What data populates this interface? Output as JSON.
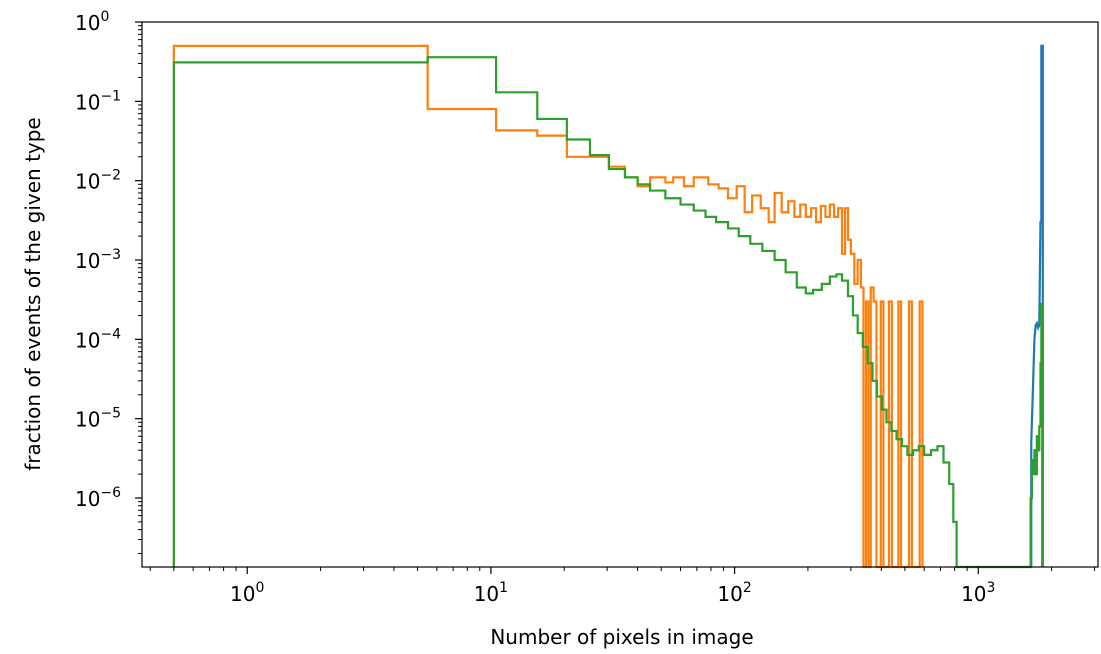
{
  "chart_data": {
    "type": "line",
    "subtype": "step-histogram",
    "title": "",
    "xlabel": "Number of pixels in image",
    "ylabel": "fraction of events of the given type",
    "xscale": "log",
    "yscale": "log",
    "xlim": [
      0.37,
      3100
    ],
    "ylim": [
      1.35e-07,
      1
    ],
    "grid": false,
    "legend": "none",
    "x_ticks": [
      {
        "value": 1,
        "base": "10",
        "exp": "0"
      },
      {
        "value": 10,
        "base": "10",
        "exp": "1"
      },
      {
        "value": 100,
        "base": "10",
        "exp": "2"
      },
      {
        "value": 1000,
        "base": "10",
        "exp": "3"
      }
    ],
    "y_ticks": [
      {
        "value": 1,
        "base": "10",
        "exp": "0"
      },
      {
        "value": 0.1,
        "base": "10",
        "exp": "−1"
      },
      {
        "value": 0.01,
        "base": "10",
        "exp": "−2"
      },
      {
        "value": 0.001,
        "base": "10",
        "exp": "−3"
      },
      {
        "value": 0.0001,
        "base": "10",
        "exp": "−4"
      },
      {
        "value": 1e-05,
        "base": "10",
        "exp": "−5"
      },
      {
        "value": 1e-06,
        "base": "10",
        "exp": "−6"
      }
    ],
    "series": [
      {
        "color": "#1f77b4",
        "points": [
          [
            1650,
            1.35e-07
          ],
          [
            1650,
            5e-06
          ],
          [
            1680,
            3e-05
          ],
          [
            1700,
            0.0001
          ],
          [
            1720,
            0.00015
          ],
          [
            1740,
            0.00016
          ],
          [
            1760,
            0.00014
          ],
          [
            1780,
            0.00015
          ],
          [
            1800,
            0.003
          ],
          [
            1815,
            0.003
          ],
          [
            1815,
            0.5
          ],
          [
            1840,
            0.5
          ],
          [
            1840,
            1.35e-07
          ]
        ]
      },
      {
        "color": "#ff7f0e",
        "points": [
          [
            0.5,
            1.35e-07
          ],
          [
            0.5,
            0.5
          ],
          [
            5.5,
            0.5
          ],
          [
            5.5,
            0.08
          ],
          [
            10.5,
            0.08
          ],
          [
            10.5,
            0.043
          ],
          [
            15.5,
            0.043
          ],
          [
            15.5,
            0.037
          ],
          [
            20.5,
            0.037
          ],
          [
            20.5,
            0.02
          ],
          [
            25.5,
            0.02
          ],
          [
            25.5,
            0.02
          ],
          [
            30.5,
            0.02
          ],
          [
            30.5,
            0.015
          ],
          [
            35.5,
            0.015
          ],
          [
            35.5,
            0.011
          ],
          [
            40,
            0.011
          ],
          [
            40,
            0.0085
          ],
          [
            45,
            0.0085
          ],
          [
            45,
            0.011
          ],
          [
            52,
            0.011
          ],
          [
            52,
            0.0095
          ],
          [
            56,
            0.0095
          ],
          [
            56,
            0.011
          ],
          [
            62,
            0.011
          ],
          [
            62,
            0.0085
          ],
          [
            68,
            0.0085
          ],
          [
            68,
            0.011
          ],
          [
            78,
            0.011
          ],
          [
            78,
            0.009
          ],
          [
            86,
            0.009
          ],
          [
            86,
            0.008
          ],
          [
            94,
            0.008
          ],
          [
            94,
            0.006
          ],
          [
            102,
            0.006
          ],
          [
            102,
            0.0085
          ],
          [
            110,
            0.0085
          ],
          [
            110,
            0.004
          ],
          [
            118,
            0.004
          ],
          [
            118,
            0.0065
          ],
          [
            128,
            0.0065
          ],
          [
            128,
            0.0045
          ],
          [
            138,
            0.0045
          ],
          [
            138,
            0.003
          ],
          [
            146,
            0.003
          ],
          [
            146,
            0.007
          ],
          [
            156,
            0.007
          ],
          [
            156,
            0.004
          ],
          [
            166,
            0.004
          ],
          [
            166,
            0.0055
          ],
          [
            176,
            0.0055
          ],
          [
            176,
            0.0035
          ],
          [
            186,
            0.0035
          ],
          [
            186,
            0.005
          ],
          [
            196,
            0.005
          ],
          [
            196,
            0.0035
          ],
          [
            206,
            0.0035
          ],
          [
            206,
            0.0045
          ],
          [
            216,
            0.0045
          ],
          [
            216,
            0.003
          ],
          [
            226,
            0.003
          ],
          [
            226,
            0.0048
          ],
          [
            236,
            0.0048
          ],
          [
            236,
            0.0035
          ],
          [
            246,
            0.0035
          ],
          [
            246,
            0.005
          ],
          [
            256,
            0.005
          ],
          [
            256,
            0.0035
          ],
          [
            266,
            0.0035
          ],
          [
            266,
            0.0045
          ],
          [
            276,
            0.0045
          ],
          [
            276,
            0.0012
          ],
          [
            284,
            0.0012
          ],
          [
            284,
            0.0045
          ],
          [
            292,
            0.0045
          ],
          [
            292,
            0.0018
          ],
          [
            300,
            0.0018
          ],
          [
            300,
            0.0012
          ],
          [
            310,
            0.0012
          ],
          [
            310,
            0.0005
          ],
          [
            320,
            0.0005
          ],
          [
            320,
            0.001
          ],
          [
            330,
            0.001
          ],
          [
            330,
            0.00045
          ],
          [
            338,
            0.00045
          ],
          [
            338,
            1.35e-07
          ],
          [
            346,
            1.35e-07
          ],
          [
            346,
            0.0003
          ],
          [
            354,
            0.0003
          ],
          [
            354,
            1.35e-07
          ],
          [
            362,
            1.35e-07
          ],
          [
            362,
            0.00045
          ],
          [
            372,
            0.00045
          ],
          [
            372,
            0.0003
          ],
          [
            382,
            0.0003
          ],
          [
            382,
            1.35e-07
          ],
          [
            398,
            1.35e-07
          ],
          [
            398,
            0.0003
          ],
          [
            408,
            0.0003
          ],
          [
            408,
            1.35e-07
          ],
          [
            430,
            1.35e-07
          ],
          [
            430,
            0.0003
          ],
          [
            442,
            0.0003
          ],
          [
            442,
            1.35e-07
          ],
          [
            470,
            1.35e-07
          ],
          [
            470,
            0.0003
          ],
          [
            482,
            0.0003
          ],
          [
            482,
            1.35e-07
          ],
          [
            520,
            1.35e-07
          ],
          [
            520,
            0.0003
          ],
          [
            534,
            0.0003
          ],
          [
            534,
            1.35e-07
          ],
          [
            575,
            1.35e-07
          ],
          [
            575,
            0.0003
          ],
          [
            590,
            0.0003
          ],
          [
            590,
            1.35e-07
          ]
        ]
      },
      {
        "color": "#2ca02c",
        "points": [
          [
            0.5,
            1.35e-07
          ],
          [
            0.5,
            0.31
          ],
          [
            5.5,
            0.31
          ],
          [
            5.5,
            0.36
          ],
          [
            10.5,
            0.36
          ],
          [
            10.5,
            0.13
          ],
          [
            15.5,
            0.13
          ],
          [
            15.5,
            0.06
          ],
          [
            20.5,
            0.06
          ],
          [
            20.5,
            0.033
          ],
          [
            25.5,
            0.033
          ],
          [
            25.5,
            0.021
          ],
          [
            30.5,
            0.021
          ],
          [
            30.5,
            0.014
          ],
          [
            35.5,
            0.014
          ],
          [
            35.5,
            0.011
          ],
          [
            40,
            0.011
          ],
          [
            40,
            0.009
          ],
          [
            45,
            0.009
          ],
          [
            45,
            0.0075
          ],
          [
            52,
            0.0075
          ],
          [
            52,
            0.006
          ],
          [
            60,
            0.006
          ],
          [
            60,
            0.005
          ],
          [
            68,
            0.005
          ],
          [
            68,
            0.0042
          ],
          [
            76,
            0.0042
          ],
          [
            76,
            0.0035
          ],
          [
            84,
            0.0035
          ],
          [
            84,
            0.003
          ],
          [
            94,
            0.003
          ],
          [
            94,
            0.0025
          ],
          [
            104,
            0.0025
          ],
          [
            104,
            0.002
          ],
          [
            116,
            0.002
          ],
          [
            116,
            0.0016
          ],
          [
            130,
            0.0016
          ],
          [
            130,
            0.0013
          ],
          [
            146,
            0.0013
          ],
          [
            146,
            0.001
          ],
          [
            162,
            0.001
          ],
          [
            162,
            0.0007
          ],
          [
            180,
            0.0007
          ],
          [
            180,
            0.00045
          ],
          [
            196,
            0.00045
          ],
          [
            196,
            0.00038
          ],
          [
            210,
            0.00038
          ],
          [
            210,
            0.00042
          ],
          [
            228,
            0.00042
          ],
          [
            228,
            0.0005
          ],
          [
            246,
            0.0005
          ],
          [
            246,
            0.00062
          ],
          [
            262,
            0.00062
          ],
          [
            262,
            0.00066
          ],
          [
            276,
            0.00066
          ],
          [
            276,
            0.00055
          ],
          [
            292,
            0.00055
          ],
          [
            292,
            0.00035
          ],
          [
            306,
            0.00035
          ],
          [
            306,
            0.0002
          ],
          [
            320,
            0.0002
          ],
          [
            320,
            0.00012
          ],
          [
            336,
            0.00012
          ],
          [
            336,
            8e-05
          ],
          [
            352,
            8e-05
          ],
          [
            352,
            5e-05
          ],
          [
            368,
            5e-05
          ],
          [
            368,
            3e-05
          ],
          [
            384,
            3e-05
          ],
          [
            384,
            1.9e-05
          ],
          [
            402,
            1.9e-05
          ],
          [
            402,
            1.3e-05
          ],
          [
            420,
            1.3e-05
          ],
          [
            420,
            9e-06
          ],
          [
            440,
            9e-06
          ],
          [
            440,
            7e-06
          ],
          [
            462,
            7e-06
          ],
          [
            462,
            5.5e-06
          ],
          [
            486,
            5.5e-06
          ],
          [
            486,
            4.5e-06
          ],
          [
            512,
            4.5e-06
          ],
          [
            512,
            3.5e-06
          ],
          [
            540,
            3.5e-06
          ],
          [
            540,
            4e-06
          ],
          [
            570,
            4e-06
          ],
          [
            570,
            4.5e-06
          ],
          [
            600,
            4.5e-06
          ],
          [
            600,
            3.5e-06
          ],
          [
            640,
            3.5e-06
          ],
          [
            640,
            4e-06
          ],
          [
            680,
            4e-06
          ],
          [
            680,
            4.5e-06
          ],
          [
            720,
            4.5e-06
          ],
          [
            720,
            2.8e-06
          ],
          [
            760,
            2.8e-06
          ],
          [
            760,
            1.5e-06
          ],
          [
            790,
            1.5e-06
          ],
          [
            790,
            5e-07
          ],
          [
            815,
            5e-07
          ],
          [
            815,
            1.35e-07
          ],
          [
            1640,
            1.35e-07
          ],
          [
            1640,
            1e-06
          ],
          [
            1660,
            1e-06
          ],
          [
            1660,
            3e-06
          ],
          [
            1680,
            3e-06
          ],
          [
            1680,
            2e-06
          ],
          [
            1700,
            2e-06
          ],
          [
            1700,
            4e-06
          ],
          [
            1720,
            4e-06
          ],
          [
            1720,
            2e-06
          ],
          [
            1740,
            2e-06
          ],
          [
            1740,
            6e-06
          ],
          [
            1760,
            6e-06
          ],
          [
            1760,
            4e-06
          ],
          [
            1780,
            4e-06
          ],
          [
            1780,
            8e-06
          ],
          [
            1800,
            8e-06
          ],
          [
            1800,
            5e-05
          ],
          [
            1815,
            5e-05
          ],
          [
            1815,
            0.00028
          ],
          [
            1830,
            0.00028
          ],
          [
            1830,
            1.35e-07
          ]
        ]
      }
    ]
  }
}
